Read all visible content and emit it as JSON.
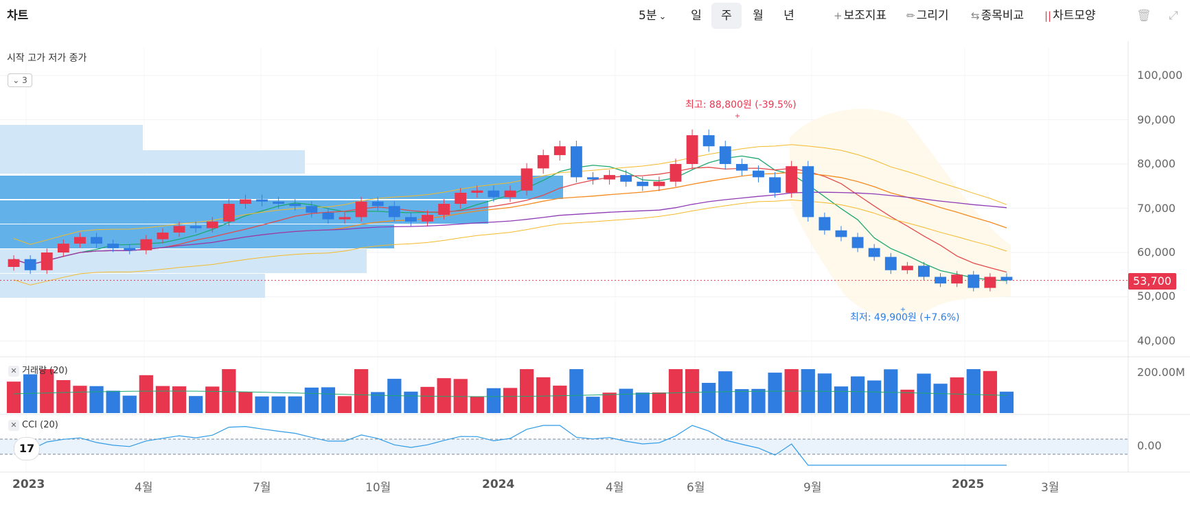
{
  "app": {
    "title": "차트"
  },
  "toolbar": {
    "interval": "5분",
    "periods": [
      "일",
      "주",
      "월",
      "년"
    ],
    "selected_period": "주",
    "indicator_label": "보조지표",
    "draw_label": "그리기",
    "compare_label": "종목비교",
    "chart_style_label": "차트모양",
    "icons": [
      "plus-icon",
      "pencil-icon",
      "compare-arrows-icon",
      "chart-style-icon",
      "trash-icon",
      "expand-icon"
    ]
  },
  "legend": {
    "ohlc_label": "시작 고가 저가 종가",
    "collapse_count": "3"
  },
  "price_axis": [
    "100,000",
    "90,000",
    "80,000",
    "70,000",
    "60,000",
    "50,000",
    "40,000"
  ],
  "current_price": "53,700",
  "annotations": {
    "high": "최고: 88,800원 (-39.5%)",
    "low": "최저: 49,900원 (+7.6%)"
  },
  "volume_pane": {
    "label": "거래량 (20)",
    "axis_label": "200.00M"
  },
  "cci_pane": {
    "label": "CCI (20)",
    "axis_label": "0.00"
  },
  "time_axis": [
    "2023",
    "4월",
    "7월",
    "10월",
    "2024",
    "4월",
    "6월",
    "9월",
    "2025",
    "3월"
  ],
  "colors": {
    "up": "#e8364f",
    "down": "#2f7de1",
    "accent": "#e8364f"
  },
  "chart_data": {
    "type": "candlestick",
    "weekly_close_approx": [
      58500,
      56000,
      60000,
      62000,
      63500,
      62000,
      61000,
      60500,
      63000,
      64500,
      66000,
      65500,
      67000,
      71000,
      72000,
      71500,
      71000,
      70500,
      69000,
      67500,
      68000,
      71500,
      70500,
      68000,
      67000,
      68500,
      71000,
      73500,
      74000,
      72500,
      74000,
      79000,
      82000,
      84000,
      77000,
      76500,
      77500,
      76000,
      75000,
      76000,
      80000,
      86500,
      84000,
      80000,
      78500,
      77000,
      73500,
      79500,
      68000,
      65000,
      63500,
      61000,
      59000,
      56000,
      57000,
      54500,
      53000,
      55000,
      52000,
      54500,
      53700
    ],
    "price_range": [
      40000,
      100000
    ],
    "high": {
      "value": 88800,
      "label": "최고: 88,800원 (-39.5%)"
    },
    "low": {
      "value": 49900,
      "label": "최저: 49,900원 (+7.6%)"
    },
    "last": 53700
  }
}
